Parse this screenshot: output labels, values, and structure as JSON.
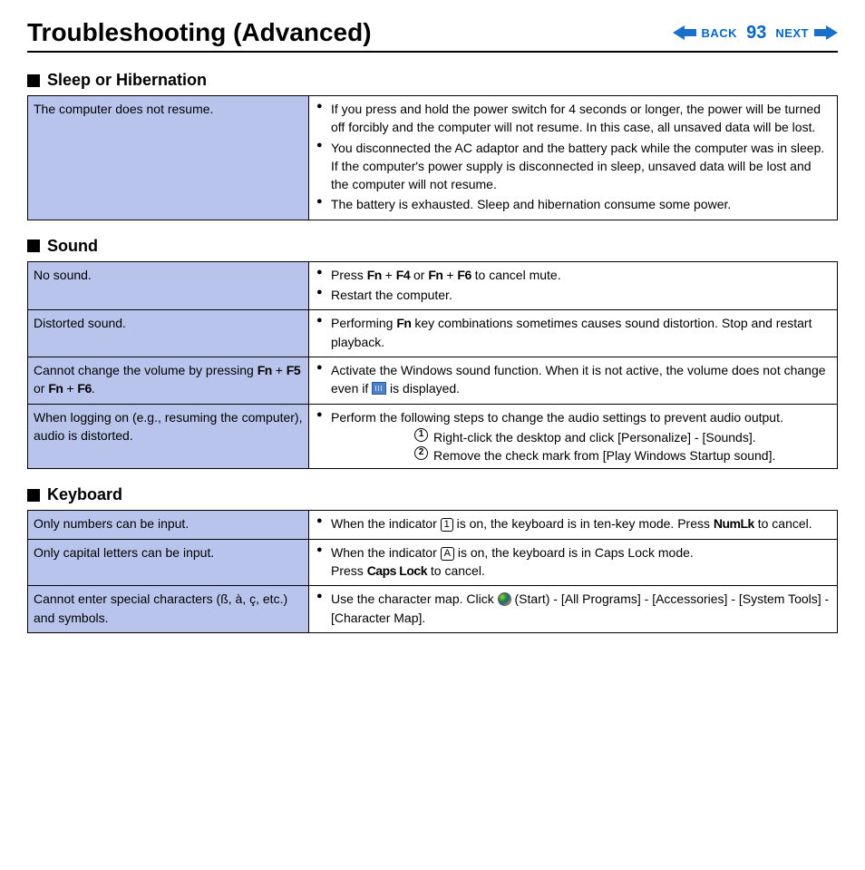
{
  "header": {
    "title": "Troubleshooting (Advanced)",
    "back_label": "BACK",
    "next_label": "NEXT",
    "page_number": "93",
    "nav_color": "#0066cc",
    "arrow_fill": "#1a6fc9"
  },
  "styles": {
    "issue_bg": "#b8c4ec",
    "border_color": "#000000",
    "body_fontsize": 14,
    "title_fontsize": 28,
    "section_title_fontsize": 18
  },
  "sections": [
    {
      "title": "Sleep or Hibernation",
      "rows": [
        {
          "issue": "The computer does not resume.",
          "remedy": [
            "If you press and hold the power switch for 4 seconds or longer, the power will be turned off forcibly and the computer will not resume. In this case, all unsaved data will be lost.",
            "You disconnected the AC adaptor and the battery pack while the computer was in sleep. If the computer's power supply is disconnected in sleep, unsaved data will be lost and the computer will not resume.",
            "The battery is exhausted. Sleep and hibernation consume some power."
          ]
        }
      ]
    },
    {
      "title": "Sound",
      "rows": [
        {
          "issue": "No sound.",
          "remedy": [
            "Press <key>Fn</key> + <key>F4</key> or <key>Fn</key> + <key>F6</key> to cancel mute.",
            "Restart the computer."
          ]
        },
        {
          "issue": "Distorted sound.",
          "remedy": [
            "Performing <key>Fn</key> key combinations sometimes causes sound distortion. Stop and restart playback."
          ]
        },
        {
          "issue": "Cannot change the volume by pressing <key>Fn</key> + <key>F5</key> or <key>Fn</key> + <key>F6</key>.",
          "remedy": [
            "Activate the Windows sound function. When it is not active, the volume does not change even if <vol-icon/> is displayed."
          ]
        },
        {
          "issue": "When logging on (e.g., resuming the computer), audio is distorted.",
          "remedy": [
            "Perform the following steps to change the audio settings to prevent audio output."
          ],
          "substeps": [
            "Right-click the desktop and click [Personalize] - [Sounds].",
            "Remove the check mark from [Play Windows Startup sound]."
          ]
        }
      ]
    },
    {
      "title": "Keyboard",
      "rows": [
        {
          "issue": "Only numbers can be input.",
          "remedy": [
            "When the indicator <ind>1</ind> is on, the keyboard is in ten-key mode. Press <key>NumLk</key> to cancel."
          ]
        },
        {
          "issue": "Only capital letters can be input.",
          "remedy": [
            "When the indicator <ind>A</ind> is on, the keyboard is in Caps Lock mode.\nPress  <key>Caps Lock</key> to cancel."
          ]
        },
        {
          "issue": "Cannot enter special characters (ß, à, ç, etc.) and symbols.",
          "remedy": [
            "Use the character map. Click <win/> (Start) - [All Programs] - [Accessories] - [System Tools] - [Character Map]."
          ]
        }
      ]
    }
  ]
}
